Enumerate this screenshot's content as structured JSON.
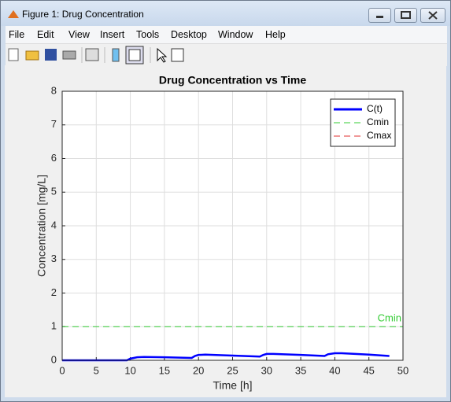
{
  "window": {
    "title": "Figure 1: Drug Concentration"
  },
  "menu": [
    "File",
    "Edit",
    "View",
    "Insert",
    "Tools",
    "Desktop",
    "Window",
    "Help"
  ],
  "chart_data": {
    "type": "line",
    "title": "Drug Concentration vs Time",
    "xlabel": "Time [h]",
    "ylabel": "Concentration [mg/L]",
    "x": [
      0,
      9.5,
      10,
      11,
      12,
      15,
      19,
      19.5,
      20,
      21,
      25,
      29,
      29.5,
      30,
      31,
      35,
      38.5,
      39,
      40,
      41,
      45,
      48
    ],
    "series": [
      {
        "name": "C(t)",
        "color": "#0000ff",
        "values": [
          0,
          0,
          0.05,
          0.09,
          0.1,
          0.09,
          0.07,
          0.13,
          0.16,
          0.17,
          0.14,
          0.11,
          0.16,
          0.19,
          0.19,
          0.16,
          0.13,
          0.18,
          0.21,
          0.21,
          0.17,
          0.13
        ]
      }
    ],
    "reference_lines": [
      {
        "name": "Cmin",
        "value": 1,
        "color": "#33cc33"
      },
      {
        "name": "Cmax",
        "value": 8,
        "color": "#e03030"
      }
    ],
    "annotations": [
      {
        "text": "Cmin",
        "color": "#33cc33"
      }
    ],
    "xlim": [
      0,
      50
    ],
    "xticks": [
      0,
      5,
      10,
      15,
      20,
      25,
      30,
      35,
      40,
      45,
      50
    ],
    "ylim": [
      0,
      8
    ],
    "yticks": [
      0,
      1,
      2,
      3,
      4,
      5,
      6,
      7,
      8
    ],
    "grid": true,
    "legend": "northeast"
  }
}
